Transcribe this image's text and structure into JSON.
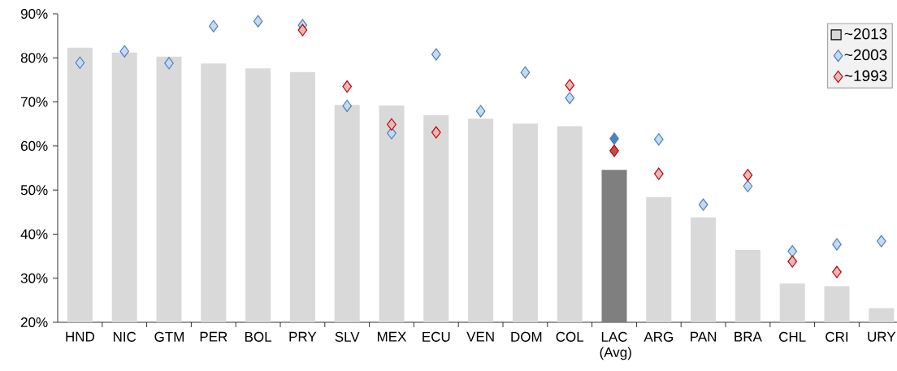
{
  "chart_data": {
    "type": "bar",
    "categories": [
      "HND",
      "NIC",
      "GTM",
      "PER",
      "BOL",
      "PRY",
      "SLV",
      "MEX",
      "ECU",
      "VEN",
      "DOM",
      "COL",
      "LAC (Avg)",
      "ARG",
      "PAN",
      "BRA",
      "CHL",
      "CRI",
      "URY"
    ],
    "series": [
      {
        "name": "~2013",
        "color": "#d9d9d9",
        "colors": [
          "#d9d9d9",
          "#d9d9d9",
          "#d9d9d9",
          "#d9d9d9",
          "#d9d9d9",
          "#d9d9d9",
          "#d9d9d9",
          "#d9d9d9",
          "#d9d9d9",
          "#d9d9d9",
          "#d9d9d9",
          "#d9d9d9",
          "#7f7f7f",
          "#d9d9d9",
          "#d9d9d9",
          "#d9d9d9",
          "#d9d9d9",
          "#d9d9d9",
          "#d9d9d9"
        ],
        "values": [
          82.3,
          81.2,
          80.3,
          78.7,
          77.6,
          76.8,
          69.3,
          69.2,
          67.0,
          66.2,
          65.1,
          64.5,
          54.6,
          48.4,
          43.8,
          36.4,
          28.8,
          28.2,
          23.2
        ]
      },
      {
        "name": "~2003",
        "type": "scatter",
        "color": "#4f81bd",
        "colors": [
          "#c6d9f1",
          "#c6d9f1",
          "#c6d9f1",
          "#c6d9f1",
          "#c6d9f1",
          "#c6d9f1",
          "#c6d9f1",
          "#c6d9f1",
          "#c6d9f1",
          "#c6d9f1",
          "#c6d9f1",
          "#c6d9f1",
          "#4f81bd",
          "#c6d9f1",
          "#c6d9f1",
          "#c6d9f1",
          "#c6d9f1",
          "#c6d9f1",
          "#c6d9f1"
        ],
        "values": [
          78.9,
          81.5,
          78.8,
          87.2,
          88.3,
          87.4,
          69.1,
          62.9,
          80.8,
          67.9,
          76.7,
          70.9,
          61.7,
          61.5,
          46.7,
          50.9,
          36.1,
          37.7,
          38.4
        ]
      },
      {
        "name": "~1993",
        "type": "scatter",
        "color": "#c00000",
        "colors": [
          "#e6b9b8",
          "#e6b9b8",
          "#e6b9b8",
          "#e6b9b8",
          "#e6b9b8",
          "#e6b9b8",
          "#e6b9b8",
          "#e6b9b8",
          "#e6b9b8",
          "#e6b9b8",
          "#e6b9b8",
          "#e6b9b8",
          "#c0504d",
          "#e6b9b8",
          "#e6b9b8",
          "#e6b9b8",
          "#e6b9b8",
          "#e6b9b8",
          "#e6b9b8"
        ],
        "values": [
          null,
          null,
          null,
          null,
          null,
          86.3,
          73.5,
          64.9,
          63.1,
          null,
          null,
          73.8,
          58.9,
          53.7,
          null,
          53.4,
          33.8,
          31.4,
          null
        ]
      }
    ],
    "ylim": [
      20,
      90
    ],
    "yticks": [
      {
        "value": 20,
        "label": "20%"
      },
      {
        "value": 30,
        "label": "30%"
      },
      {
        "value": 40,
        "label": "40%"
      },
      {
        "value": 50,
        "label": "50%"
      },
      {
        "value": 60,
        "label": "60%"
      },
      {
        "value": 70,
        "label": "70%"
      },
      {
        "value": 80,
        "label": "80%"
      },
      {
        "value": 90,
        "label": "90%"
      }
    ],
    "marker": "diamond",
    "legend": "top right",
    "grid": false
  }
}
